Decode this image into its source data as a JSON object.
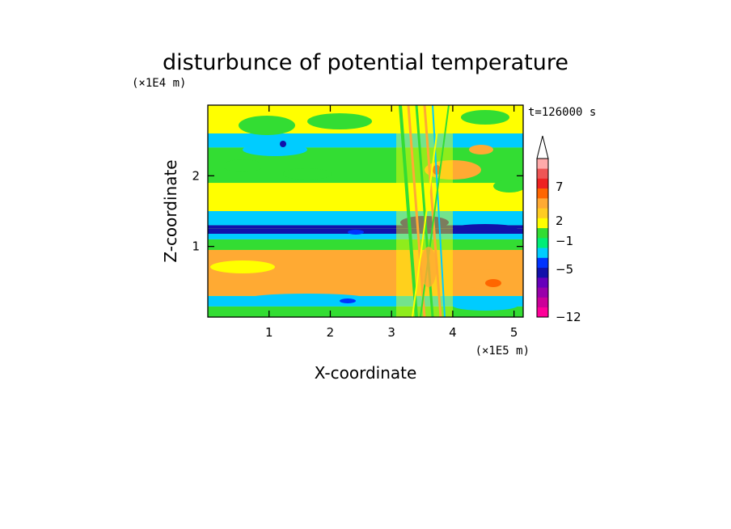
{
  "chart_data": {
    "type": "heatmap",
    "title": "disturbunce of potential temperature",
    "xlabel": "X-coordinate",
    "ylabel": "Z-coordinate",
    "x_unit": "(×1E5 m)",
    "y_unit": "(×1E4 m)",
    "time_label": "t=126000 s",
    "xlim": [
      0,
      5.15
    ],
    "ylim": [
      0,
      3.0
    ],
    "x_ticks": [
      1,
      2,
      3,
      4,
      5
    ],
    "y_ticks": [
      1,
      2
    ],
    "x_tick_labels": [
      "1",
      "2",
      "3",
      "4",
      "5"
    ],
    "y_tick_labels": [
      "1",
      "2"
    ],
    "colorbar": {
      "label_values": [
        "7",
        "2",
        "−1",
        "−5",
        "−12"
      ],
      "colors": [
        "#ff0099",
        "#cc0099",
        "#9900aa",
        "#6600bb",
        "#1111aa",
        "#0033ff",
        "#00ccff",
        "#00ee77",
        "#33dd33",
        "#ffff00",
        "#ffcc22",
        "#ffaa33",
        "#ff6600",
        "#ee2222",
        "#ee5555",
        "#ffaaaa"
      ]
    },
    "bands": [
      {
        "z": [
          0.0,
          0.15
        ],
        "level": "green"
      },
      {
        "z": [
          0.15,
          0.3
        ],
        "level": "cyan"
      },
      {
        "z": [
          0.3,
          0.95
        ],
        "level": "orange"
      },
      {
        "z": [
          0.95,
          1.1
        ],
        "level": "green"
      },
      {
        "z": [
          1.1,
          1.25
        ],
        "level": "cyan"
      },
      {
        "z": [
          1.25,
          1.3
        ],
        "level": "blue"
      },
      {
        "z": [
          1.3,
          1.5
        ],
        "level": "cyan"
      },
      {
        "z": [
          1.5,
          1.9
        ],
        "level": "yellow"
      },
      {
        "z": [
          1.9,
          2.4
        ],
        "level": "green"
      },
      {
        "z": [
          2.4,
          2.6
        ],
        "level": "cyan"
      },
      {
        "z": [
          2.6,
          3.0
        ],
        "level": "yellow"
      }
    ]
  }
}
